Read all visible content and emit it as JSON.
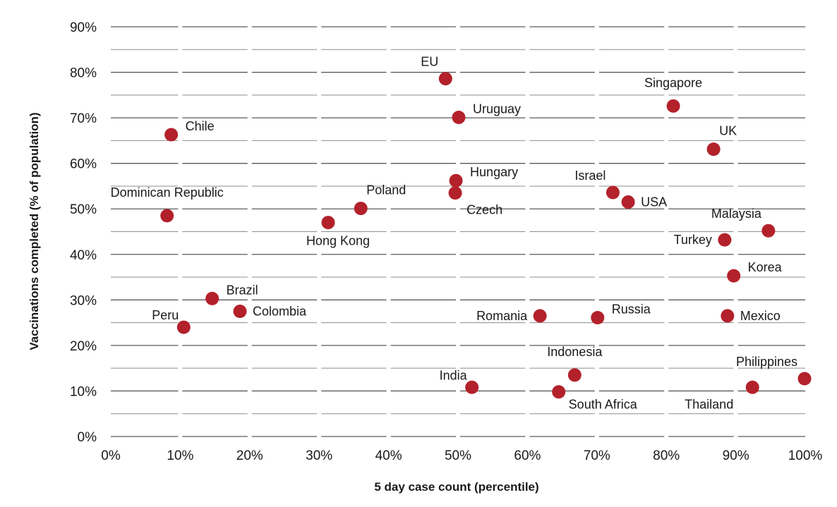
{
  "chart_data": {
    "type": "scatter",
    "xlabel": "5 day case count (percentile)",
    "ylabel": "Vaccinations completed (% of population)",
    "xlim": [
      0,
      100
    ],
    "ylim": [
      0,
      90
    ],
    "x_ticks": [
      "0%",
      "10%",
      "20%",
      "30%",
      "40%",
      "50%",
      "60%",
      "70%",
      "80%",
      "90%",
      "100%"
    ],
    "y_ticks": [
      "0%",
      "10%",
      "20%",
      "30%",
      "40%",
      "50%",
      "60%",
      "70%",
      "80%",
      "90%"
    ],
    "grid": true,
    "marker_color": "#b3212b",
    "points": [
      {
        "label": "EU",
        "x": 48.2,
        "y": 78.6,
        "pos": "above-left"
      },
      {
        "label": "Singapore",
        "x": 81.0,
        "y": 72.6,
        "pos": "above"
      },
      {
        "label": "Uruguay",
        "x": 50.1,
        "y": 70.1,
        "pos": "right-up"
      },
      {
        "label": "Chile",
        "x": 8.7,
        "y": 66.3,
        "pos": "right-up"
      },
      {
        "label": "UK",
        "x": 86.8,
        "y": 63.1,
        "pos": "above-right"
      },
      {
        "label": "Hungary",
        "x": 49.7,
        "y": 56.2,
        "pos": "right-up"
      },
      {
        "label": "Israel",
        "x": 72.3,
        "y": 53.6,
        "pos": "above-left"
      },
      {
        "label": "Czech",
        "x": 49.6,
        "y": 53.5,
        "pos": "right-down"
      },
      {
        "label": "USA",
        "x": 74.5,
        "y": 51.5,
        "pos": "right"
      },
      {
        "label": "Poland",
        "x": 36.0,
        "y": 50.1,
        "pos": "above-right"
      },
      {
        "label": "Dominican Republic",
        "x": 8.1,
        "y": 48.5,
        "pos": "above"
      },
      {
        "label": "Hong Kong",
        "x": 31.3,
        "y": 47.0,
        "pos": "below"
      },
      {
        "label": "Malaysia",
        "x": 94.7,
        "y": 45.2,
        "pos": "above-left"
      },
      {
        "label": "Turkey",
        "x": 88.4,
        "y": 43.2,
        "pos": "left"
      },
      {
        "label": "Korea",
        "x": 89.7,
        "y": 35.3,
        "pos": "right-up"
      },
      {
        "label": "Brazil",
        "x": 14.6,
        "y": 30.3,
        "pos": "right-up"
      },
      {
        "label": "Colombia",
        "x": 18.6,
        "y": 27.5,
        "pos": "right"
      },
      {
        "label": "Romania",
        "x": 61.8,
        "y": 26.5,
        "pos": "left"
      },
      {
        "label": "Russia",
        "x": 70.1,
        "y": 26.1,
        "pos": "right-up"
      },
      {
        "label": "Mexico",
        "x": 88.8,
        "y": 26.5,
        "pos": "right"
      },
      {
        "label": "Peru",
        "x": 10.5,
        "y": 24.0,
        "pos": "left-up"
      },
      {
        "label": "Indonesia",
        "x": 66.8,
        "y": 13.5,
        "pos": "above"
      },
      {
        "label": "Philippines",
        "x": 99.9,
        "y": 12.7,
        "pos": "above-left"
      },
      {
        "label": "India",
        "x": 52.0,
        "y": 10.8,
        "pos": "left-up"
      },
      {
        "label": "Thailand",
        "x": 92.4,
        "y": 10.8,
        "pos": "below-left"
      },
      {
        "label": "South Africa",
        "x": 64.5,
        "y": 9.8,
        "pos": "below-right"
      }
    ]
  }
}
